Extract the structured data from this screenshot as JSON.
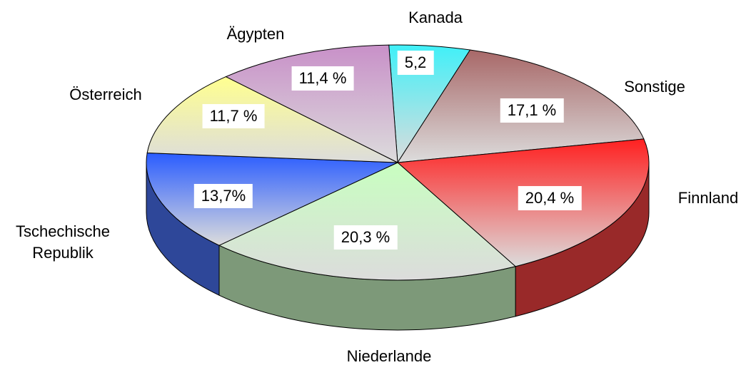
{
  "chart_data": {
    "type": "pie3d",
    "categories": [
      "Kanada",
      "Sonstige",
      "Finnland",
      "Niederlande",
      "Tschechische\nRepublik",
      "Österreich",
      "Ägypten"
    ],
    "values": [
      5.2,
      17.1,
      20.4,
      20.3,
      13.7,
      11.7,
      11.4
    ],
    "value_labels": [
      "5,2",
      "17,1 %",
      "20,4 %",
      "20,3 %",
      "13,7%",
      "11,7 %",
      "11,4 %"
    ],
    "colors": [
      "#40f0f8",
      "#a86868",
      "#ff2020",
      "#c8ffc0",
      "#2a5cff",
      "#ffff90",
      "#c890c8"
    ]
  }
}
